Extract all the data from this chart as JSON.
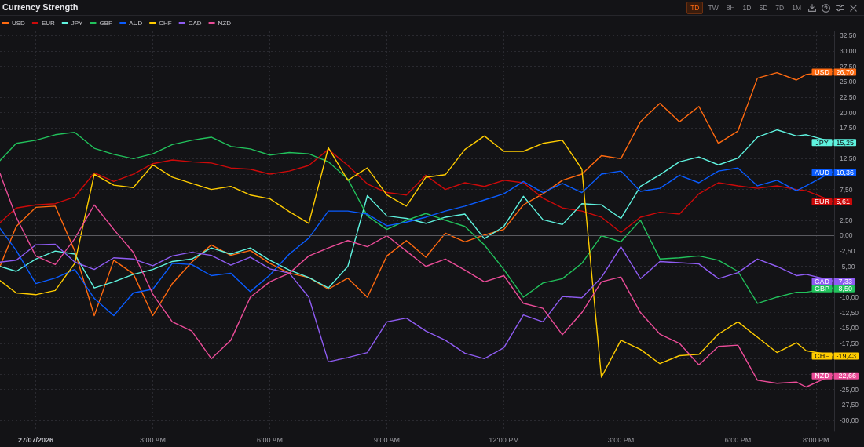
{
  "chart_data": {
    "type": "line",
    "title": "Currency Strength",
    "annotations": [
      "TD",
      "TW",
      "8H",
      "1D",
      "5D",
      "7D",
      "1M"
    ],
    "legend": "top left",
    "grid": true,
    "x": [
      "2026-07-26T23:05",
      "2026-07-26T23:30",
      "2026-07-27T00:00",
      "2026-07-27T00:30",
      "2026-07-27T01:00",
      "2026-07-27T01:30",
      "2026-07-27T02:00",
      "2026-07-27T02:30",
      "2026-07-27T03:00",
      "2026-07-27T03:30",
      "2026-07-27T04:00",
      "2026-07-27T04:30",
      "2026-07-27T05:00",
      "2026-07-27T05:30",
      "2026-07-27T06:00",
      "2026-07-27T06:30",
      "2026-07-27T07:00",
      "2026-07-27T07:30",
      "2026-07-27T08:00",
      "2026-07-27T08:30",
      "2026-07-27T09:00",
      "2026-07-27T09:30",
      "2026-07-27T10:00",
      "2026-07-27T10:30",
      "2026-07-27T11:00",
      "2026-07-27T11:30",
      "2026-07-27T12:00",
      "2026-07-27T12:30",
      "2026-07-27T13:00",
      "2026-07-27T13:30",
      "2026-07-27T14:00",
      "2026-07-27T14:30",
      "2026-07-27T15:00",
      "2026-07-27T15:30",
      "2026-07-27T16:00",
      "2026-07-27T16:30",
      "2026-07-27T17:00",
      "2026-07-27T17:30",
      "2026-07-27T18:00",
      "2026-07-27T18:30",
      "2026-07-27T19:00",
      "2026-07-27T19:30",
      "2026-07-27T19:45",
      "2026-07-27T20:25"
    ],
    "xlim": [
      "2026-07-26T23:05",
      "2026-07-27T20:28"
    ],
    "xticks": [
      {
        "value": "2026-07-27T00:00",
        "label": "27/07/2026"
      },
      {
        "value": "2026-07-27T03:00",
        "label": "3:00 AM"
      },
      {
        "value": "2026-07-27T06:00",
        "label": "6:00 AM"
      },
      {
        "value": "2026-07-27T09:00",
        "label": "9:00 AM"
      },
      {
        "value": "2026-07-27T12:00",
        "label": "12:00 PM"
      },
      {
        "value": "2026-07-27T15:00",
        "label": "3:00 PM"
      },
      {
        "value": "2026-07-27T18:00",
        "label": "6:00 PM"
      },
      {
        "value": "2026-07-27T20:00",
        "label": "8:00 PM"
      }
    ],
    "ylim": [
      -31.8,
      33.2
    ],
    "yticks": [
      {
        "value": -30,
        "label": "-30,00"
      },
      {
        "value": -27.5,
        "label": "-27,50"
      },
      {
        "value": -25,
        "label": "-25,00"
      },
      {
        "value": -22.5,
        "label": null
      },
      {
        "value": -20,
        "label": null
      },
      {
        "value": -17.5,
        "label": "-17,50"
      },
      {
        "value": -15,
        "label": "-15,00"
      },
      {
        "value": -12.5,
        "label": "-12,50"
      },
      {
        "value": -10,
        "label": "-10,00"
      },
      {
        "value": -7.5,
        "label": null
      },
      {
        "value": -5,
        "label": "-5,00"
      },
      {
        "value": -2.5,
        "label": "-2,50"
      },
      {
        "value": 0,
        "label": "0,00"
      },
      {
        "value": 2.5,
        "label": "2,50"
      },
      {
        "value": 5,
        "label": null
      },
      {
        "value": 7.5,
        "label": "7,50"
      },
      {
        "value": 10,
        "label": null
      },
      {
        "value": 12.5,
        "label": "12,50"
      },
      {
        "value": 15,
        "label": null
      },
      {
        "value": 17.5,
        "label": "17,50"
      },
      {
        "value": 20,
        "label": "20,00"
      },
      {
        "value": 22.5,
        "label": "22,50"
      },
      {
        "value": 25,
        "label": "25,00"
      },
      {
        "value": 27.5,
        "label": "27,50"
      },
      {
        "value": 30,
        "label": "30,00"
      },
      {
        "value": 32.5,
        "label": "32,50"
      }
    ],
    "ref_lines": [
      {
        "axis": "y",
        "value": 0,
        "color": "#5a5a60"
      }
    ],
    "series": [
      {
        "name": "USD",
        "color": "#ff6a10",
        "values": [
          -5.0,
          1.5,
          4.6,
          4.8,
          -2.5,
          -13.0,
          -4.0,
          -6.2,
          -13.0,
          -7.8,
          -4.3,
          -1.5,
          -3.2,
          -2.4,
          -4.5,
          -6.1,
          -6.8,
          -8.7,
          -6.9,
          -10.0,
          -3.3,
          -0.8,
          -3.5,
          0.4,
          -1.0,
          0.1,
          1.0,
          5.0,
          6.8,
          9.0,
          10.0,
          13.0,
          12.5,
          18.5,
          21.5,
          18.5,
          21.0,
          15.0,
          17.0,
          25.6,
          26.5,
          25.3,
          26.2,
          26.7
        ],
        "value_labels": [
          null,
          null,
          null,
          null,
          null,
          null,
          null,
          null,
          null,
          null,
          null,
          null,
          null,
          null,
          null,
          null,
          null,
          null,
          null,
          null,
          null,
          null,
          null,
          null,
          null,
          null,
          null,
          null,
          null,
          null,
          null,
          null,
          null,
          null,
          null,
          null,
          null,
          null,
          null,
          null,
          null,
          null,
          null,
          "26,70"
        ]
      },
      {
        "name": "EUR",
        "color": "#cc0a0a",
        "values": [
          2.1,
          4.5,
          5.0,
          5.2,
          6.3,
          10.2,
          8.8,
          10.0,
          11.7,
          12.3,
          12.0,
          11.8,
          11.0,
          10.8,
          10.0,
          10.5,
          11.4,
          14.0,
          11.4,
          8.4,
          7.0,
          6.6,
          9.8,
          7.5,
          8.6,
          8.0,
          9.0,
          8.6,
          6.1,
          4.5,
          4.0,
          3.0,
          0.5,
          3.0,
          3.8,
          3.5,
          6.8,
          8.6,
          8.1,
          7.7,
          8.1,
          7.5,
          7.3,
          5.61
        ],
        "value_labels": [
          null,
          null,
          null,
          null,
          null,
          null,
          null,
          null,
          null,
          null,
          null,
          null,
          null,
          null,
          null,
          null,
          null,
          null,
          null,
          null,
          null,
          null,
          null,
          null,
          null,
          null,
          null,
          null,
          null,
          null,
          null,
          null,
          null,
          null,
          null,
          null,
          null,
          null,
          null,
          null,
          null,
          null,
          null,
          "5,61"
        ]
      },
      {
        "name": "JPY",
        "color": "#5ff3df",
        "values": [
          -5.0,
          -5.8,
          -3.8,
          -2.5,
          -3.0,
          -8.5,
          -7.5,
          -6.3,
          -5.5,
          -4.2,
          -3.8,
          -2.0,
          -3.0,
          -2.0,
          -4.0,
          -5.6,
          -6.8,
          -8.5,
          -5.0,
          6.5,
          3.2,
          2.8,
          2.0,
          3.0,
          3.5,
          -0.5,
          1.5,
          6.4,
          2.6,
          1.8,
          5.2,
          5.0,
          2.8,
          8.0,
          9.9,
          12.0,
          12.8,
          11.5,
          12.6,
          16.0,
          17.2,
          16.2,
          16.4,
          15.25
        ],
        "value_labels": [
          null,
          null,
          null,
          null,
          null,
          null,
          null,
          null,
          null,
          null,
          null,
          null,
          null,
          null,
          null,
          null,
          null,
          null,
          null,
          null,
          null,
          null,
          null,
          null,
          null,
          null,
          null,
          null,
          null,
          null,
          null,
          null,
          null,
          null,
          null,
          null,
          null,
          null,
          null,
          null,
          null,
          null,
          null,
          "15,25"
        ]
      },
      {
        "name": "GBP",
        "color": "#22c25c",
        "values": [
          12.2,
          15.0,
          15.5,
          16.4,
          16.8,
          14.2,
          13.2,
          12.5,
          13.3,
          14.8,
          15.5,
          16.0,
          14.5,
          14.1,
          13.1,
          13.5,
          13.3,
          12.0,
          9.2,
          3.2,
          1.0,
          2.5,
          3.6,
          2.5,
          1.5,
          -1.5,
          -5.5,
          -10.0,
          -7.7,
          -7.0,
          -4.5,
          0.0,
          -1.0,
          2.5,
          -3.8,
          -3.6,
          -3.3,
          -4.0,
          -5.8,
          -11.0,
          -10.0,
          -9.2,
          -9.2,
          -8.5
        ],
        "value_labels": [
          null,
          null,
          null,
          null,
          null,
          null,
          null,
          null,
          null,
          null,
          null,
          null,
          null,
          null,
          null,
          null,
          null,
          null,
          null,
          null,
          null,
          null,
          null,
          null,
          null,
          null,
          null,
          null,
          null,
          null,
          null,
          null,
          null,
          null,
          null,
          null,
          null,
          null,
          null,
          null,
          null,
          null,
          null,
          "-8,50"
        ]
      },
      {
        "name": "AUD",
        "color": "#0a5cff",
        "values": [
          1.2,
          -2.4,
          -7.8,
          -6.9,
          -5.5,
          -10.2,
          -13.0,
          -9.3,
          -8.7,
          -4.5,
          -4.7,
          -6.5,
          -6.1,
          -9.1,
          -6.4,
          -3.0,
          -0.4,
          4.0,
          4.0,
          3.5,
          1.6,
          2.2,
          3.0,
          4.0,
          4.8,
          5.8,
          6.8,
          8.8,
          7.0,
          8.5,
          7.0,
          10.0,
          10.5,
          7.2,
          7.7,
          9.8,
          8.6,
          10.5,
          11.0,
          8.1,
          9.0,
          7.3,
          8.1,
          10.36
        ],
        "value_labels": [
          null,
          null,
          null,
          null,
          null,
          null,
          null,
          null,
          null,
          null,
          null,
          null,
          null,
          null,
          null,
          null,
          null,
          null,
          null,
          null,
          null,
          null,
          null,
          null,
          null,
          null,
          null,
          null,
          null,
          null,
          null,
          null,
          null,
          null,
          null,
          null,
          null,
          null,
          null,
          null,
          null,
          null,
          null,
          "10,36"
        ]
      },
      {
        "name": "CHF",
        "color": "#ffcc00",
        "values": [
          -7.3,
          -9.3,
          -9.6,
          -8.9,
          -4.5,
          10.0,
          8.2,
          7.8,
          11.5,
          9.5,
          8.5,
          7.5,
          8.0,
          6.6,
          6.0,
          3.9,
          2.0,
          14.3,
          9.0,
          11.0,
          6.6,
          4.8,
          9.5,
          9.9,
          14.0,
          16.2,
          13.7,
          13.7,
          15.0,
          15.5,
          10.8,
          -23.0,
          -17.0,
          -18.5,
          -20.8,
          -19.5,
          -19.3,
          -16.0,
          -14.0,
          -16.5,
          -19.0,
          -17.4,
          -18.7,
          -19.43
        ],
        "value_labels": [
          null,
          null,
          null,
          null,
          null,
          null,
          null,
          null,
          null,
          null,
          null,
          null,
          null,
          null,
          null,
          null,
          null,
          null,
          null,
          null,
          null,
          null,
          null,
          null,
          null,
          null,
          null,
          null,
          null,
          null,
          null,
          null,
          null,
          null,
          null,
          null,
          null,
          null,
          null,
          null,
          null,
          null,
          null,
          "-19,43"
        ]
      },
      {
        "name": "CAD",
        "color": "#8f5cf2",
        "values": [
          -4.3,
          -4.0,
          -1.5,
          -1.4,
          -4.3,
          -5.5,
          -3.6,
          -3.8,
          -4.9,
          -3.3,
          -2.7,
          -3.2,
          -4.8,
          -3.5,
          -5.4,
          -6.1,
          -10.0,
          -20.5,
          -19.8,
          -19.0,
          -14.0,
          -13.4,
          -15.5,
          -17.0,
          -19.1,
          -20.0,
          -18.2,
          -12.9,
          -14.0,
          -9.9,
          -10.1,
          -6.8,
          -1.8,
          -7.0,
          -4.2,
          -4.4,
          -4.6,
          -7.0,
          -6.0,
          -3.8,
          -5.0,
          -6.5,
          -6.3,
          -7.33
        ],
        "value_labels": [
          null,
          null,
          null,
          null,
          null,
          null,
          null,
          null,
          null,
          null,
          null,
          null,
          null,
          null,
          null,
          null,
          null,
          null,
          null,
          null,
          null,
          null,
          null,
          null,
          null,
          null,
          null,
          null,
          null,
          null,
          null,
          null,
          null,
          null,
          null,
          null,
          null,
          null,
          null,
          null,
          null,
          null,
          null,
          "-7,33"
        ]
      },
      {
        "name": "NZD",
        "color": "#ea4c98",
        "values": [
          10.1,
          3.0,
          -3.3,
          -4.7,
          -0.5,
          5.0,
          1.0,
          -2.7,
          -9.5,
          -14.0,
          -15.5,
          -20.0,
          -17.0,
          -10.0,
          -7.5,
          -6.1,
          -3.3,
          -2.0,
          -0.8,
          -1.8,
          0.0,
          -2.5,
          -5.0,
          -3.8,
          -5.6,
          -7.5,
          -6.5,
          -11.0,
          -11.8,
          -16.1,
          -12.5,
          -7.5,
          -6.7,
          -12.5,
          -16.0,
          -17.5,
          -21.0,
          -18.0,
          -17.8,
          -23.5,
          -24.0,
          -23.8,
          -24.6,
          -22.66
        ],
        "value_labels": [
          null,
          null,
          null,
          null,
          null,
          null,
          null,
          null,
          null,
          null,
          null,
          null,
          null,
          null,
          null,
          null,
          null,
          null,
          null,
          null,
          null,
          null,
          null,
          null,
          null,
          null,
          null,
          null,
          null,
          null,
          null,
          null,
          null,
          null,
          null,
          null,
          null,
          null,
          null,
          null,
          null,
          null,
          null,
          "-22,66"
        ]
      }
    ]
  }
}
